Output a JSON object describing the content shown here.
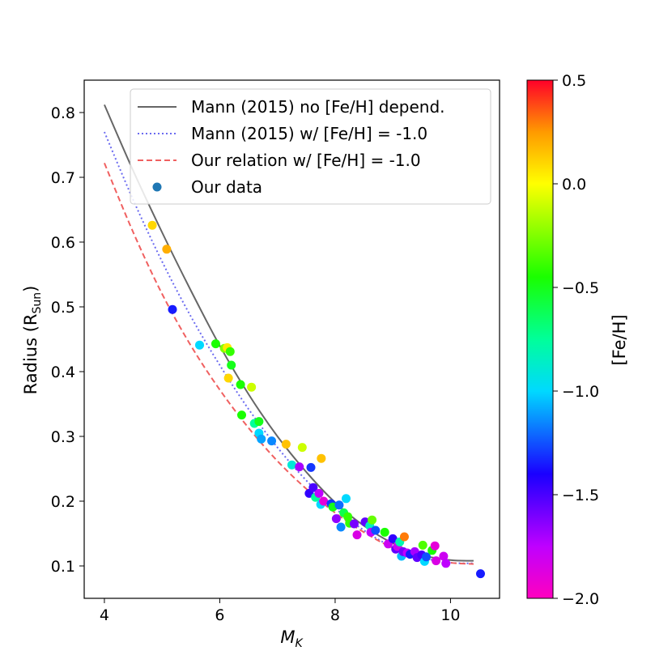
{
  "chart_data": {
    "type": "scatter",
    "title": "",
    "xlabel": "M",
    "xlabel_sub": "K",
    "ylabel": "Radius (R",
    "ylabel_sub": "Sun",
    "ylabel_close": ")",
    "xlim": [
      3.65,
      10.85
    ],
    "ylim": [
      0.05,
      0.85
    ],
    "xticks": [
      4,
      6,
      8,
      10
    ],
    "xtick_labels": [
      "4",
      "6",
      "8",
      "10"
    ],
    "yticks": [
      0.1,
      0.2,
      0.3,
      0.4,
      0.5,
      0.6,
      0.7,
      0.8
    ],
    "ytick_labels": [
      "0.1",
      "0.2",
      "0.3",
      "0.4",
      "0.5",
      "0.6",
      "0.7",
      "0.8"
    ],
    "legend_position": "top-right",
    "lines": [
      {
        "name": "Mann (2015) no [Fe/H] depend.",
        "color": "#666666",
        "dash": "solid",
        "x": [
          4.0,
          4.5,
          5.0,
          5.5,
          6.0,
          6.5,
          7.0,
          7.5,
          8.0,
          8.5,
          9.0,
          9.5,
          10.0,
          10.4
        ],
        "y": [
          0.812,
          0.71,
          0.615,
          0.525,
          0.44,
          0.365,
          0.3,
          0.245,
          0.198,
          0.162,
          0.135,
          0.117,
          0.109,
          0.108
        ]
      },
      {
        "name": "Mann (2015) w/ [Fe/H] = -1.0",
        "color": "#6b6bf0",
        "dash": "dotted",
        "x": [
          4.0,
          4.5,
          5.0,
          5.5,
          6.0,
          6.5,
          7.0,
          7.5,
          8.0,
          8.5,
          9.0,
          9.5,
          10.0,
          10.4
        ],
        "y": [
          0.77,
          0.665,
          0.57,
          0.485,
          0.41,
          0.342,
          0.283,
          0.232,
          0.189,
          0.155,
          0.129,
          0.113,
          0.105,
          0.104
        ]
      },
      {
        "name": "Our relation w/ [Fe/H] = -1.0",
        "color": "#f06060",
        "dash": "dashed",
        "x": [
          4.0,
          4.5,
          5.0,
          5.5,
          6.0,
          6.5,
          7.0,
          7.5,
          8.0,
          8.5,
          9.0,
          9.5,
          10.0,
          10.4
        ],
        "y": [
          0.722,
          0.615,
          0.52,
          0.44,
          0.372,
          0.313,
          0.262,
          0.219,
          0.182,
          0.152,
          0.128,
          0.113,
          0.105,
          0.103
        ]
      }
    ],
    "scatter": {
      "name": "Our data",
      "legend_color": "#1f77b4",
      "points": [
        {
          "x": 4.83,
          "y": 0.626,
          "feh": 0.1
        },
        {
          "x": 5.08,
          "y": 0.589,
          "feh": 0.2
        },
        {
          "x": 5.18,
          "y": 0.496,
          "feh": -1.35
        },
        {
          "x": 5.65,
          "y": 0.441,
          "feh": -1.0
        },
        {
          "x": 5.93,
          "y": 0.443,
          "feh": -0.45
        },
        {
          "x": 6.08,
          "y": 0.436,
          "feh": -0.25
        },
        {
          "x": 6.13,
          "y": 0.437,
          "feh": 0.05
        },
        {
          "x": 6.18,
          "y": 0.431,
          "feh": -0.4
        },
        {
          "x": 6.2,
          "y": 0.41,
          "feh": -0.5
        },
        {
          "x": 6.15,
          "y": 0.39,
          "feh": 0.1
        },
        {
          "x": 6.36,
          "y": 0.38,
          "feh": -0.45
        },
        {
          "x": 6.38,
          "y": 0.333,
          "feh": -0.45
        },
        {
          "x": 6.55,
          "y": 0.376,
          "feh": -0.1
        },
        {
          "x": 6.6,
          "y": 0.32,
          "feh": -0.75
        },
        {
          "x": 6.68,
          "y": 0.323,
          "feh": -0.5
        },
        {
          "x": 6.68,
          "y": 0.305,
          "feh": -1.0
        },
        {
          "x": 6.72,
          "y": 0.296,
          "feh": -1.1
        },
        {
          "x": 6.9,
          "y": 0.293,
          "feh": -1.15
        },
        {
          "x": 7.15,
          "y": 0.288,
          "feh": 0.15
        },
        {
          "x": 7.25,
          "y": 0.256,
          "feh": -0.9
        },
        {
          "x": 7.38,
          "y": 0.253,
          "feh": -1.7
        },
        {
          "x": 7.43,
          "y": 0.283,
          "feh": -0.1
        },
        {
          "x": 7.58,
          "y": 0.252,
          "feh": -1.3
        },
        {
          "x": 7.76,
          "y": 0.266,
          "feh": 0.15
        },
        {
          "x": 7.55,
          "y": 0.212,
          "feh": -1.45
        },
        {
          "x": 7.62,
          "y": 0.221,
          "feh": -1.5
        },
        {
          "x": 7.66,
          "y": 0.206,
          "feh": -0.75
        },
        {
          "x": 7.72,
          "y": 0.212,
          "feh": -1.75
        },
        {
          "x": 7.75,
          "y": 0.195,
          "feh": -1.0
        },
        {
          "x": 7.8,
          "y": 0.2,
          "feh": -1.9
        },
        {
          "x": 7.93,
          "y": 0.196,
          "feh": -1.3
        },
        {
          "x": 7.96,
          "y": 0.191,
          "feh": -0.5
        },
        {
          "x": 8.02,
          "y": 0.173,
          "feh": -1.65
        },
        {
          "x": 8.07,
          "y": 0.194,
          "feh": -1.2
        },
        {
          "x": 8.1,
          "y": 0.16,
          "feh": -1.15
        },
        {
          "x": 8.15,
          "y": 0.182,
          "feh": -0.6
        },
        {
          "x": 8.19,
          "y": 0.204,
          "feh": -1.0
        },
        {
          "x": 8.22,
          "y": 0.176,
          "feh": -0.4
        },
        {
          "x": 8.25,
          "y": 0.166,
          "feh": -0.4
        },
        {
          "x": 8.33,
          "y": 0.165,
          "feh": -1.6
        },
        {
          "x": 8.38,
          "y": 0.148,
          "feh": -1.85
        },
        {
          "x": 8.52,
          "y": 0.168,
          "feh": -1.55
        },
        {
          "x": 8.6,
          "y": 0.162,
          "feh": -0.85
        },
        {
          "x": 8.64,
          "y": 0.171,
          "feh": -0.3
        },
        {
          "x": 8.62,
          "y": 0.152,
          "feh": -1.75
        },
        {
          "x": 8.7,
          "y": 0.155,
          "feh": -1.25
        },
        {
          "x": 8.86,
          "y": 0.152,
          "feh": -0.45
        },
        {
          "x": 8.92,
          "y": 0.134,
          "feh": -1.8
        },
        {
          "x": 9.0,
          "y": 0.142,
          "feh": -1.45
        },
        {
          "x": 9.05,
          "y": 0.126,
          "feh": -1.55
        },
        {
          "x": 9.08,
          "y": 0.13,
          "feh": -1.8
        },
        {
          "x": 9.12,
          "y": 0.137,
          "feh": -0.8
        },
        {
          "x": 9.15,
          "y": 0.115,
          "feh": -1.05
        },
        {
          "x": 9.18,
          "y": 0.122,
          "feh": -1.6
        },
        {
          "x": 9.2,
          "y": 0.145,
          "feh": 0.3
        },
        {
          "x": 9.25,
          "y": 0.12,
          "feh": -1.75
        },
        {
          "x": 9.3,
          "y": 0.118,
          "feh": -1.35
        },
        {
          "x": 9.38,
          "y": 0.122,
          "feh": -1.7
        },
        {
          "x": 9.42,
          "y": 0.113,
          "feh": -1.55
        },
        {
          "x": 9.5,
          "y": 0.117,
          "feh": -1.5
        },
        {
          "x": 9.52,
          "y": 0.132,
          "feh": -0.35
        },
        {
          "x": 9.55,
          "y": 0.107,
          "feh": -1.0
        },
        {
          "x": 9.58,
          "y": 0.114,
          "feh": -1.25
        },
        {
          "x": 9.68,
          "y": 0.124,
          "feh": -0.45
        },
        {
          "x": 9.73,
          "y": 0.131,
          "feh": -1.9
        },
        {
          "x": 9.75,
          "y": 0.108,
          "feh": -1.85
        },
        {
          "x": 9.88,
          "y": 0.115,
          "feh": -1.8
        },
        {
          "x": 9.92,
          "y": 0.104,
          "feh": -1.75
        },
        {
          "x": 10.52,
          "y": 0.088,
          "feh": -1.35
        }
      ]
    },
    "colorbar": {
      "label": "[Fe/H]",
      "min": -2.0,
      "max": 0.5,
      "ticks": [
        0.5,
        0.0,
        -0.5,
        -1.0,
        -1.5,
        -2.0
      ],
      "tick_labels": [
        "0.5",
        "0.0",
        "−0.5",
        "−1.0",
        "−1.5",
        "−2.0"
      ],
      "colormap": "gist_rainbow_r"
    }
  }
}
